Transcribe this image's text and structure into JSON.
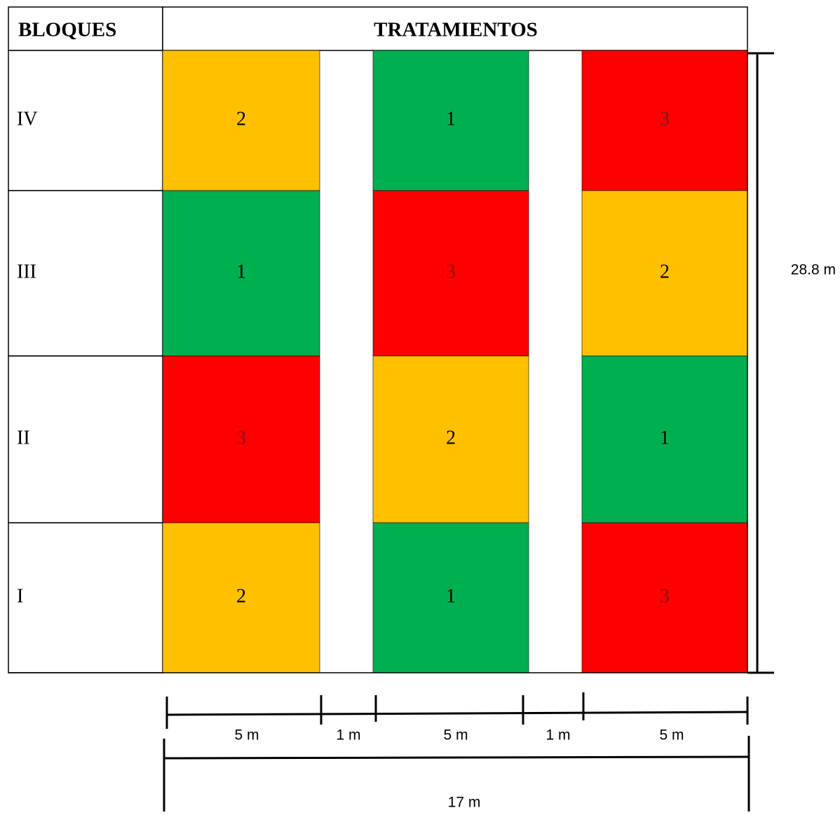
{
  "header": {
    "blocks_label": "BLOQUES",
    "treatments_label": "TRATAMIENTOS"
  },
  "colors": {
    "1": "#00b050",
    "2": "#ffc000",
    "3": "#ff0000",
    "grid": "#000000",
    "background": "#ffffff"
  },
  "rows": [
    {
      "block": "IV",
      "treatments": [
        "2",
        "1",
        "3"
      ]
    },
    {
      "block": "III",
      "treatments": [
        "1",
        "3",
        "2"
      ]
    },
    {
      "block": "II",
      "treatments": [
        "3",
        "2",
        "1"
      ]
    },
    {
      "block": "I",
      "treatments": [
        "2",
        "1",
        "3"
      ]
    }
  ],
  "dimensions": {
    "height_label": "28.8 m",
    "width_segments": [
      "5 m",
      "1 m",
      "5 m",
      "1 m",
      "5 m"
    ],
    "total_width_label": "17 m"
  }
}
